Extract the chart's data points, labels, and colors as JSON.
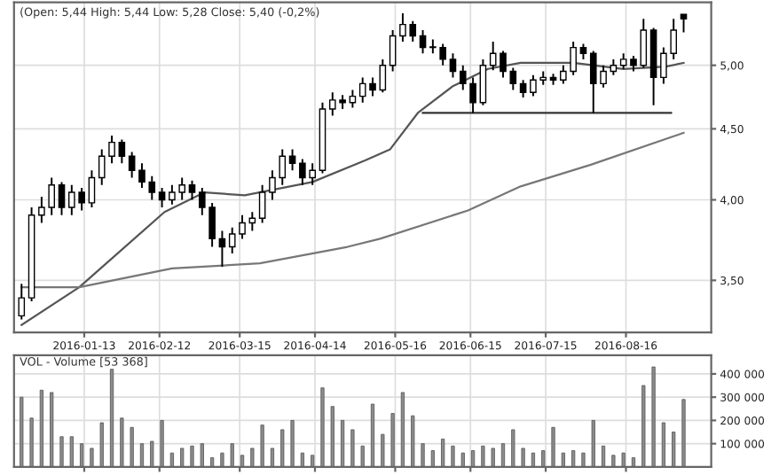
{
  "chart_data": [
    {
      "type": "candlestick",
      "title": "(Open: 5,44 High: 5,44 Low: 5,28 Close: 5,40 (-0,2%)",
      "x": [
        "2015-12-19",
        "2015-12-23",
        "2015-12-27",
        "2015-12-31",
        "2016-01-04",
        "2016-01-08",
        "2016-01-12",
        "2016-01-16",
        "2016-01-20",
        "2016-01-24",
        "2016-01-28",
        "2016-02-01",
        "2016-02-05",
        "2016-02-09",
        "2016-02-13",
        "2016-02-17",
        "2016-02-21",
        "2016-02-25",
        "2016-02-29",
        "2016-03-04",
        "2016-03-08",
        "2016-03-12",
        "2016-03-16",
        "2016-03-20",
        "2016-03-24",
        "2016-03-28",
        "2016-04-01",
        "2016-04-05",
        "2016-04-09",
        "2016-04-13",
        "2016-04-17",
        "2016-04-21",
        "2016-04-25",
        "2016-04-29",
        "2016-05-03",
        "2016-05-07",
        "2016-05-11",
        "2016-05-15",
        "2016-05-19",
        "2016-05-23",
        "2016-05-27",
        "2016-05-31",
        "2016-06-04",
        "2016-06-08",
        "2016-06-12",
        "2016-06-16",
        "2016-06-20",
        "2016-06-24",
        "2016-06-28",
        "2016-07-02",
        "2016-07-06",
        "2016-07-10",
        "2016-07-14",
        "2016-07-18",
        "2016-07-22",
        "2016-07-26",
        "2016-07-30",
        "2016-08-03",
        "2016-08-07",
        "2016-08-11",
        "2016-08-15",
        "2016-08-19",
        "2016-08-23",
        "2016-08-27",
        "2016-08-31",
        "2016-09-04",
        "2016-09-08"
      ],
      "ohlc": [
        [
          3.3,
          3.48,
          3.28,
          3.4
        ],
        [
          3.4,
          3.95,
          3.38,
          3.9
        ],
        [
          3.9,
          4.02,
          3.85,
          3.95
        ],
        [
          3.95,
          4.15,
          3.9,
          4.1
        ],
        [
          4.1,
          4.12,
          3.9,
          3.95
        ],
        [
          3.95,
          4.1,
          3.9,
          4.05
        ],
        [
          4.05,
          4.08,
          3.93,
          3.98
        ],
        [
          3.98,
          4.2,
          3.95,
          4.15
        ],
        [
          4.15,
          4.35,
          4.1,
          4.3
        ],
        [
          4.3,
          4.45,
          4.25,
          4.4
        ],
        [
          4.4,
          4.42,
          4.25,
          4.3
        ],
        [
          4.3,
          4.33,
          4.15,
          4.2
        ],
        [
          4.2,
          4.25,
          4.08,
          4.12
        ],
        [
          4.12,
          4.16,
          4.0,
          4.05
        ],
        [
          4.05,
          4.08,
          3.95,
          4.0
        ],
        [
          4.0,
          4.1,
          3.97,
          4.05
        ],
        [
          4.05,
          4.15,
          4.0,
          4.1
        ],
        [
          4.1,
          4.13,
          4.0,
          4.05
        ],
        [
          4.05,
          4.08,
          3.9,
          3.95
        ],
        [
          3.95,
          3.98,
          3.7,
          3.75
        ],
        [
          3.75,
          3.8,
          3.58,
          3.7
        ],
        [
          3.7,
          3.82,
          3.66,
          3.78
        ],
        [
          3.78,
          3.9,
          3.75,
          3.85
        ],
        [
          3.85,
          3.92,
          3.8,
          3.88
        ],
        [
          3.88,
          4.1,
          3.85,
          4.05
        ],
        [
          4.05,
          4.2,
          4.0,
          4.15
        ],
        [
          4.15,
          4.35,
          4.1,
          4.3
        ],
        [
          4.3,
          4.35,
          4.2,
          4.25
        ],
        [
          4.25,
          4.28,
          4.1,
          4.15
        ],
        [
          4.15,
          4.25,
          4.1,
          4.2
        ],
        [
          4.2,
          4.7,
          4.18,
          4.65
        ],
        [
          4.65,
          4.78,
          4.6,
          4.72
        ],
        [
          4.72,
          4.76,
          4.65,
          4.7
        ],
        [
          4.7,
          4.8,
          4.66,
          4.75
        ],
        [
          4.75,
          4.9,
          4.7,
          4.85
        ],
        [
          4.85,
          4.9,
          4.75,
          4.8
        ],
        [
          4.8,
          5.05,
          4.78,
          5.0
        ],
        [
          5.0,
          5.3,
          4.95,
          5.25
        ],
        [
          5.25,
          5.45,
          5.2,
          5.35
        ],
        [
          5.35,
          5.38,
          5.2,
          5.25
        ],
        [
          5.25,
          5.3,
          5.1,
          5.15
        ],
        [
          5.15,
          5.22,
          5.1,
          5.15
        ],
        [
          5.15,
          5.18,
          5.0,
          5.05
        ],
        [
          5.05,
          5.1,
          4.9,
          4.95
        ],
        [
          4.95,
          5.0,
          4.8,
          4.85
        ],
        [
          4.85,
          4.9,
          4.62,
          4.7
        ],
        [
          4.7,
          5.05,
          4.68,
          5.0
        ],
        [
          5.0,
          5.2,
          4.96,
          5.1
        ],
        [
          5.1,
          5.12,
          4.9,
          4.95
        ],
        [
          4.95,
          4.98,
          4.8,
          4.85
        ],
        [
          4.85,
          4.88,
          4.74,
          4.78
        ],
        [
          4.78,
          4.92,
          4.75,
          4.88
        ],
        [
          4.88,
          4.95,
          4.84,
          4.9
        ],
        [
          4.9,
          4.93,
          4.84,
          4.88
        ],
        [
          4.88,
          5.0,
          4.85,
          4.95
        ],
        [
          4.95,
          5.2,
          4.92,
          5.15
        ],
        [
          5.15,
          5.18,
          5.05,
          5.1
        ],
        [
          5.1,
          5.12,
          4.62,
          4.85
        ],
        [
          4.85,
          5.0,
          4.82,
          4.95
        ],
        [
          4.95,
          5.05,
          4.92,
          5.0
        ],
        [
          5.0,
          5.1,
          4.97,
          5.05
        ],
        [
          5.05,
          5.08,
          4.95,
          5.0
        ],
        [
          5.0,
          5.4,
          4.98,
          5.3
        ],
        [
          5.3,
          5.32,
          4.68,
          4.9
        ],
        [
          4.9,
          5.15,
          4.85,
          5.1
        ],
        [
          5.1,
          5.4,
          5.05,
          5.3
        ],
        [
          5.44,
          5.44,
          5.28,
          5.4
        ]
      ],
      "series": [
        {
          "type": "line",
          "color": "#555555",
          "x": [
            "2015-12-19",
            "2016-01-11",
            "2016-02-14",
            "2016-03-01",
            "2016-03-17",
            "2016-04-13",
            "2016-05-04",
            "2016-05-14",
            "2016-05-25",
            "2016-06-08",
            "2016-06-22",
            "2016-07-05",
            "2016-07-26",
            "2016-08-15",
            "2016-09-01",
            "2016-09-08"
          ],
          "values": [
            3.25,
            3.46,
            3.92,
            4.05,
            4.03,
            4.12,
            4.27,
            4.35,
            4.62,
            4.83,
            4.97,
            5.02,
            5.02,
            4.97,
            4.99,
            5.02
          ]
        },
        {
          "type": "line",
          "color": "#777777",
          "x": [
            "2015-12-19",
            "2016-01-11",
            "2016-02-17",
            "2016-03-23",
            "2016-04-27",
            "2016-05-10",
            "2016-06-14",
            "2016-07-05",
            "2016-08-02",
            "2016-09-08"
          ],
          "values": [
            3.46,
            3.46,
            3.57,
            3.6,
            3.7,
            3.75,
            3.93,
            4.09,
            4.24,
            4.47
          ]
        },
        {
          "type": "line",
          "color": "#333333",
          "x": [
            "2016-05-27",
            "2016-09-03"
          ],
          "values": [
            4.62,
            4.62
          ]
        }
      ],
      "log": true,
      "ylim": [
        3.21,
        5.55
      ],
      "yticks": [
        {
          "value": 3.5,
          "label": "3,50"
        },
        {
          "value": 4.0,
          "label": "4,00"
        },
        {
          "value": 4.5,
          "label": "4,50"
        },
        {
          "value": 5.0,
          "label": "5,00"
        }
      ],
      "xlim": [
        "2015-12-16",
        "2016-09-19"
      ],
      "xticks": [
        "2016-01-13",
        "2016-02-12",
        "2016-03-15",
        "2016-04-14",
        "2016-05-16",
        "2016-06-15",
        "2016-07-15",
        "2016-08-16"
      ],
      "grid": true
    },
    {
      "type": "bar",
      "title": "VOL - Volume [53 368]",
      "color": "#8c8c8c",
      "tick_labels": "y",
      "grid": true,
      "x": [
        "2015-12-19",
        "2015-12-23",
        "2015-12-27",
        "2015-12-31",
        "2016-01-04",
        "2016-01-08",
        "2016-01-12",
        "2016-01-16",
        "2016-01-20",
        "2016-01-24",
        "2016-01-28",
        "2016-02-01",
        "2016-02-05",
        "2016-02-09",
        "2016-02-13",
        "2016-02-17",
        "2016-02-21",
        "2016-02-25",
        "2016-02-29",
        "2016-03-04",
        "2016-03-08",
        "2016-03-12",
        "2016-03-16",
        "2016-03-20",
        "2016-03-24",
        "2016-03-28",
        "2016-04-01",
        "2016-04-05",
        "2016-04-09",
        "2016-04-13",
        "2016-04-17",
        "2016-04-21",
        "2016-04-25",
        "2016-04-29",
        "2016-05-03",
        "2016-05-07",
        "2016-05-11",
        "2016-05-15",
        "2016-05-19",
        "2016-05-23",
        "2016-05-27",
        "2016-05-31",
        "2016-06-04",
        "2016-06-08",
        "2016-06-12",
        "2016-06-16",
        "2016-06-20",
        "2016-06-24",
        "2016-06-28",
        "2016-07-02",
        "2016-07-06",
        "2016-07-10",
        "2016-07-14",
        "2016-07-18",
        "2016-07-22",
        "2016-07-26",
        "2016-07-30",
        "2016-08-03",
        "2016-08-07",
        "2016-08-11",
        "2016-08-15",
        "2016-08-19",
        "2016-08-23",
        "2016-08-27",
        "2016-08-31",
        "2016-09-04",
        "2016-09-08"
      ],
      "values": [
        300000,
        210000,
        330000,
        320000,
        130000,
        130000,
        100000,
        80000,
        190000,
        420000,
        210000,
        170000,
        100000,
        110000,
        200000,
        60000,
        80000,
        90000,
        100000,
        40000,
        60000,
        100000,
        50000,
        80000,
        180000,
        80000,
        160000,
        200000,
        60000,
        50000,
        340000,
        260000,
        200000,
        160000,
        90000,
        270000,
        140000,
        230000,
        320000,
        220000,
        100000,
        70000,
        120000,
        90000,
        60000,
        70000,
        90000,
        80000,
        100000,
        160000,
        80000,
        60000,
        70000,
        170000,
        60000,
        70000,
        60000,
        200000,
        90000,
        50000,
        60000,
        40000,
        350000,
        430000,
        190000,
        150000,
        290000
      ],
      "xlim": [
        "2015-12-16",
        "2016-09-19"
      ],
      "ylim": [
        0,
        480000
      ],
      "yticks": [
        {
          "value": 100000,
          "label": "100 000"
        },
        {
          "value": 200000,
          "label": "200 000"
        },
        {
          "value": 300000,
          "label": "300 000"
        },
        {
          "value": 400000,
          "label": "400 000"
        }
      ]
    }
  ]
}
